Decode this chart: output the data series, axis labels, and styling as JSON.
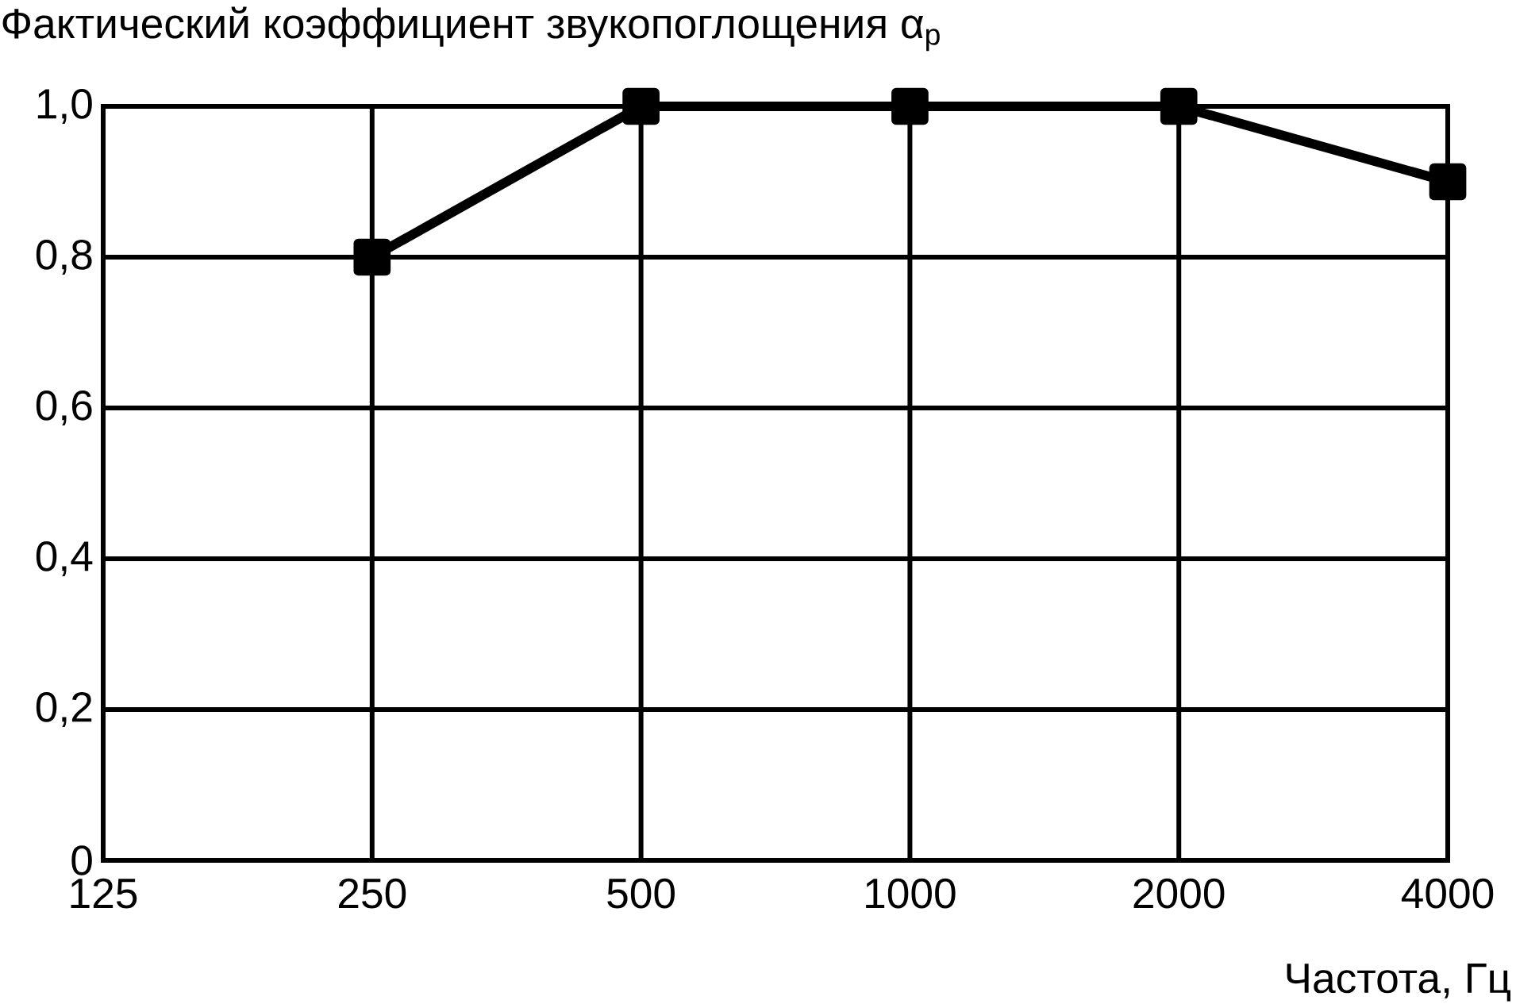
{
  "chart_data": {
    "type": "line",
    "title": "Фактический коэффициент звукопоглощения α$_{p}$",
    "xlabel": "Частота, Гц",
    "categories": [
      "125",
      "250",
      "500",
      "1000",
      "2000",
      "4000"
    ],
    "series": [
      {
        "color": "#000000",
        "values": [
          null,
          0.8,
          1.0,
          1.0,
          1.0,
          0.9
        ]
      }
    ],
    "ylim": [
      0,
      1
    ],
    "yticks": [
      0,
      {
        "value": 0.2,
        "label": "0,2"
      },
      {
        "value": 0.4,
        "label": "0,4"
      },
      {
        "value": 0.6,
        "label": "0,6"
      },
      {
        "value": 0.8,
        "label": "0,8"
      },
      {
        "value": 1.0,
        "label": "1,0"
      }
    ],
    "grid": true,
    "marker": "square",
    "line_style": "solid"
  }
}
